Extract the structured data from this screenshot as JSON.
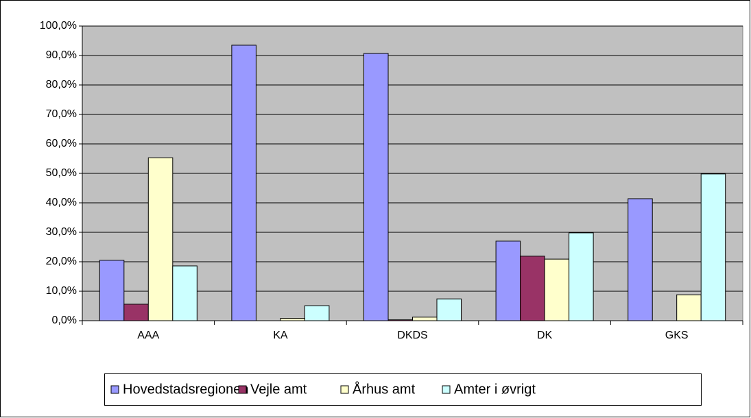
{
  "chart_data": {
    "type": "bar",
    "categories": [
      "AAA",
      "KA",
      "DKDS",
      "DK",
      "GKS"
    ],
    "series": [
      {
        "name": "Hovedstadsregionen",
        "color": "#9999ff",
        "values": [
          20.5,
          93.5,
          90.7,
          27.0,
          41.4
        ]
      },
      {
        "name": "Vejle amt",
        "color": "#993366",
        "values": [
          5.6,
          0,
          0.3,
          21.9,
          0
        ]
      },
      {
        "name": "Århus amt",
        "color": "#ffffcc",
        "values": [
          55.3,
          0.8,
          1.2,
          20.9,
          8.8
        ]
      },
      {
        "name": "Amter i øvrigt",
        "color": "#ccffff",
        "values": [
          18.6,
          5.1,
          7.4,
          29.8,
          49.8
        ]
      }
    ],
    "ylim": [
      0,
      100
    ],
    "yticks": [
      {
        "value": 0,
        "label": "0,0%"
      },
      {
        "value": 10,
        "label": "10,0%"
      },
      {
        "value": 20,
        "label": "20,0%"
      },
      {
        "value": 30,
        "label": "30,0%"
      },
      {
        "value": 40,
        "label": "40,0%"
      },
      {
        "value": 50,
        "label": "50,0%"
      },
      {
        "value": 60,
        "label": "60,0%"
      },
      {
        "value": 70,
        "label": "70,0%"
      },
      {
        "value": 80,
        "label": "80,0%"
      },
      {
        "value": 90,
        "label": "90,0%"
      },
      {
        "value": 100,
        "label": "100,0%"
      }
    ],
    "grid": true,
    "legend": "bottom",
    "plot_background": "#c0c0c0"
  }
}
